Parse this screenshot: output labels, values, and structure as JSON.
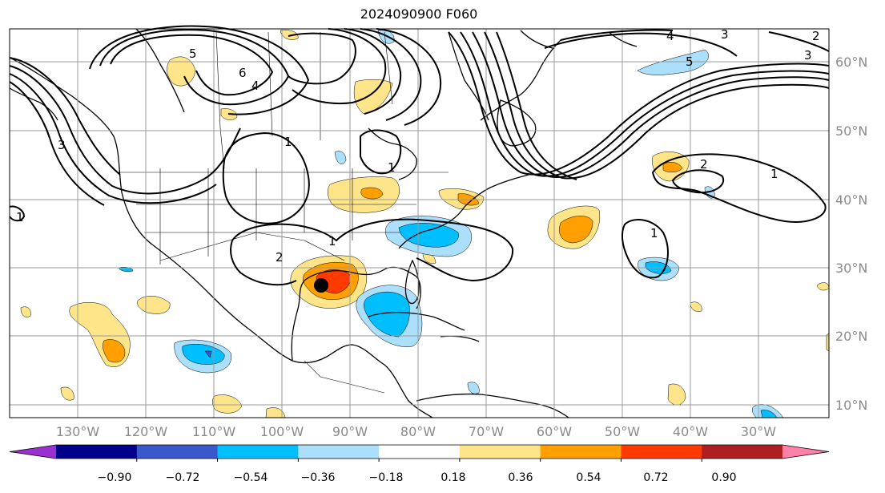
{
  "title": "2024090900 F060",
  "map": {
    "lat_labels": [
      "60°N",
      "50°N",
      "40°N",
      "30°N",
      "20°N",
      "10°N"
    ],
    "lon_labels": [
      "130°W",
      "120°W",
      "110°W",
      "100°W",
      "90°W",
      "80°W",
      "70°W",
      "60°W",
      "50°W",
      "40°W",
      "30°W"
    ]
  },
  "contour_labels": [
    "6",
    "4",
    "5",
    "1",
    "2",
    "1",
    "1",
    "2",
    "4",
    "3",
    "5",
    "3",
    "2",
    "1",
    "1",
    "1",
    "3"
  ],
  "colorbar": {
    "tick_labels": [
      "−0.90",
      "−0.72",
      "−0.54",
      "−0.36",
      "−0.18",
      "0.18",
      "0.36",
      "0.54",
      "0.72",
      "0.90"
    ],
    "colors": [
      "#9b30d0",
      "#00008b",
      "#3a58cc",
      "#00bfff",
      "#abdffb",
      "#ffffff",
      "#fee58a",
      "#ff9f00",
      "#ff3a00",
      "#b01e22",
      "#ff80a8"
    ]
  },
  "storm_marker": "black-dot"
}
